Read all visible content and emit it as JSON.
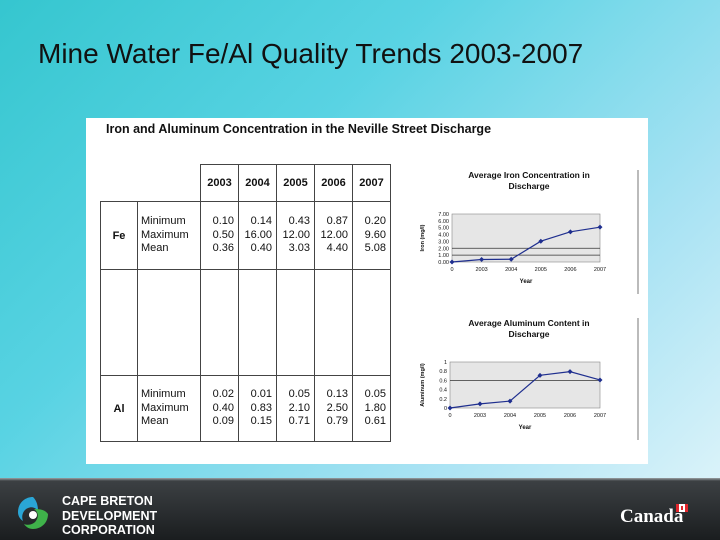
{
  "title": "Mine Water Fe/Al Quality Trends 2003-2007",
  "panel_heading": "Iron and Aluminum Concentration in the Neville Street Discharge",
  "table": {
    "years": [
      "2003",
      "2004",
      "2005",
      "2006",
      "2007"
    ],
    "groups": [
      {
        "element": "Fe",
        "stats": [
          "Minimum",
          "Maximum",
          "Mean"
        ],
        "values": [
          [
            "0.10",
            "0.50",
            "0.36"
          ],
          [
            "0.14",
            "16.00",
            "0.40"
          ],
          [
            "0.43",
            "12.00",
            "3.03"
          ],
          [
            "0.87",
            "12.00",
            "4.40"
          ],
          [
            "0.20",
            "9.60",
            "5.08"
          ]
        ]
      },
      {
        "element": "Al",
        "stats": [
          "Minimum",
          "Maximum",
          "Mean"
        ],
        "values": [
          [
            "0.02",
            "0.40",
            "0.09"
          ],
          [
            "0.01",
            "0.83",
            "0.15"
          ],
          [
            "0.05",
            "2.10",
            "0.71"
          ],
          [
            "0.13",
            "2.50",
            "0.79"
          ],
          [
            "0.05",
            "1.80",
            "0.61"
          ]
        ]
      }
    ]
  },
  "chart_data": [
    {
      "type": "line",
      "title": [
        "Average Iron Concentration in",
        "Discharge"
      ],
      "xlabel": "Year",
      "ylabel": "Iron (mg/l)",
      "x": [
        "0",
        "2003",
        "2004",
        "2005",
        "2006",
        "2007"
      ],
      "series": [
        {
          "values": [
            0,
            0.36,
            0.4,
            3.03,
            4.4,
            5.08
          ]
        }
      ],
      "y_ticks": [
        "0.00",
        "1.00",
        "2.00",
        "3.00",
        "4.00",
        "5.00",
        "6.00",
        "7.00"
      ],
      "ylim": [
        0,
        7
      ],
      "reference_lines": [
        1,
        2
      ],
      "grid": false
    },
    {
      "type": "line",
      "title": [
        "Average Aluminum Content in",
        "Discharge"
      ],
      "xlabel": "Year",
      "ylabel": "Aluminum (mg/l)",
      "x": [
        "0",
        "2003",
        "2004",
        "2005",
        "2006",
        "2007"
      ],
      "series": [
        {
          "values": [
            0,
            0.09,
            0.15,
            0.71,
            0.79,
            0.61
          ]
        }
      ],
      "y_ticks": [
        "0",
        "0.2",
        "0.4",
        "0.6",
        "0.8",
        "1"
      ],
      "ylim": [
        0,
        1
      ],
      "reference_lines": [
        0.6
      ],
      "grid": false
    }
  ],
  "footer": {
    "company_lines": [
      "CAPE BRETON",
      "DEVELOPMENT",
      "CORPORATION"
    ],
    "wordmark": "Canada",
    "colors": {
      "bar": "#1a1d1f",
      "logo_blue": "#2aa6d6",
      "logo_green": "#3fb24a",
      "flag_red": "#e0262c"
    }
  }
}
